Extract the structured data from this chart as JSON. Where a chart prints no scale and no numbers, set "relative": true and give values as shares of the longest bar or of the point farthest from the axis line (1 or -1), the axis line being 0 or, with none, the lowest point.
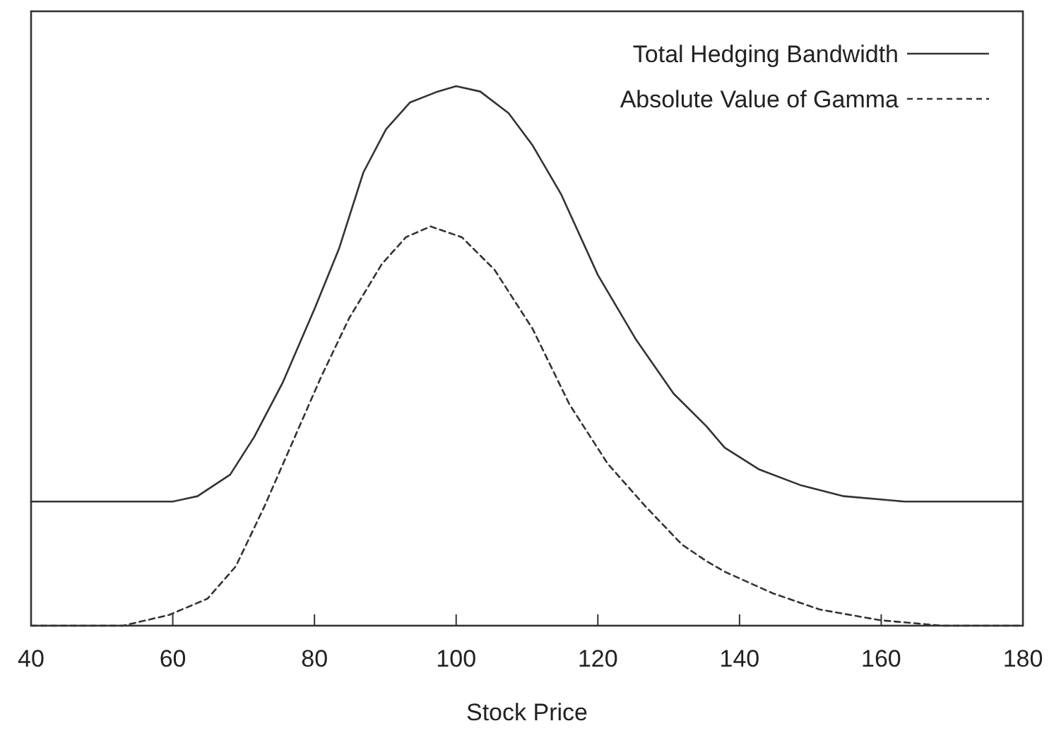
{
  "chart_data": {
    "type": "line",
    "relative": true,
    "xlabel": "Stock Price",
    "xlim": [
      40,
      180
    ],
    "xticks": [
      40,
      60,
      80,
      100,
      120,
      140,
      160,
      180
    ],
    "legend": "top right",
    "grid": false,
    "series": [
      {
        "name": "Total Hedging Bandwidth",
        "color": "#333333",
        "line_style": "solid",
        "x": [
          40,
          60,
          63.5,
          68.1,
          71.5,
          75.5,
          80.1,
          83.5,
          86.9,
          90.1,
          93.5,
          97.4,
          100,
          103.4,
          107.4,
          110.8,
          114.8,
          120,
          125.4,
          130.7,
          135.3,
          137.9,
          142.7,
          148.7,
          154.7,
          163.3,
          180
        ],
        "values": [
          0.23,
          0.23,
          0.24,
          0.28,
          0.35,
          0.45,
          0.59,
          0.7,
          0.84,
          0.92,
          0.97,
          0.99,
          1,
          0.99,
          0.95,
          0.89,
          0.8,
          0.65,
          0.53,
          0.43,
          0.37,
          0.33,
          0.29,
          0.26,
          0.24,
          0.23,
          0.23
        ]
      },
      {
        "name": "Absolute Value of Gamma",
        "color": "#333333",
        "line_style": "dashed",
        "x": [
          40,
          53,
          59.5,
          64.9,
          68.9,
          72.9,
          76.9,
          80.9,
          84.9,
          89.5,
          92.9,
          96.4,
          100.8,
          105.4,
          110.8,
          116,
          121.4,
          126.8,
          131.9,
          135.3,
          137.9,
          144.7,
          151.3,
          159.9,
          168.6,
          180
        ],
        "values": [
          0,
          0,
          0.02,
          0.05,
          0.11,
          0.22,
          0.34,
          0.46,
          0.57,
          0.67,
          0.72,
          0.74,
          0.72,
          0.66,
          0.55,
          0.41,
          0.3,
          0.22,
          0.15,
          0.12,
          0.1,
          0.06,
          0.03,
          0.01,
          0,
          0
        ]
      }
    ]
  }
}
